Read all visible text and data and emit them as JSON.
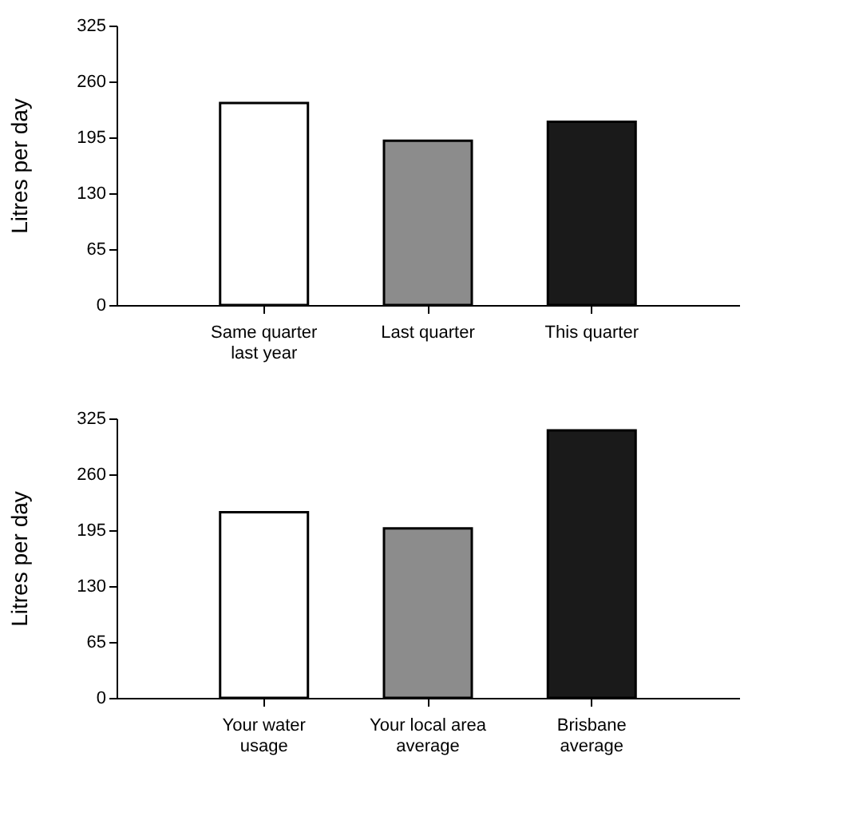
{
  "chart_data": [
    {
      "type": "bar",
      "ylabel": "Litres per day",
      "categories": [
        "Same quarter\nlast year",
        "Last quarter",
        "This quarter"
      ],
      "values": [
        235,
        191,
        213
      ],
      "colors": [
        "#ffffff",
        "#8c8c8c",
        "#1a1a1a"
      ],
      "ylim": [
        0,
        325
      ],
      "yticks": [
        0,
        65,
        130,
        195,
        260,
        325
      ],
      "grid": false,
      "legend": false
    },
    {
      "type": "bar",
      "ylabel": "Litres per day",
      "categories": [
        "Your water\nusage",
        "Your local area\naverage",
        "Brisbane\naverage"
      ],
      "values": [
        216,
        197,
        311
      ],
      "colors": [
        "#ffffff",
        "#8c8c8c",
        "#1a1a1a"
      ],
      "ylim": [
        0,
        325
      ],
      "yticks": [
        0,
        65,
        130,
        195,
        260,
        325
      ],
      "grid": false,
      "legend": false
    }
  ]
}
